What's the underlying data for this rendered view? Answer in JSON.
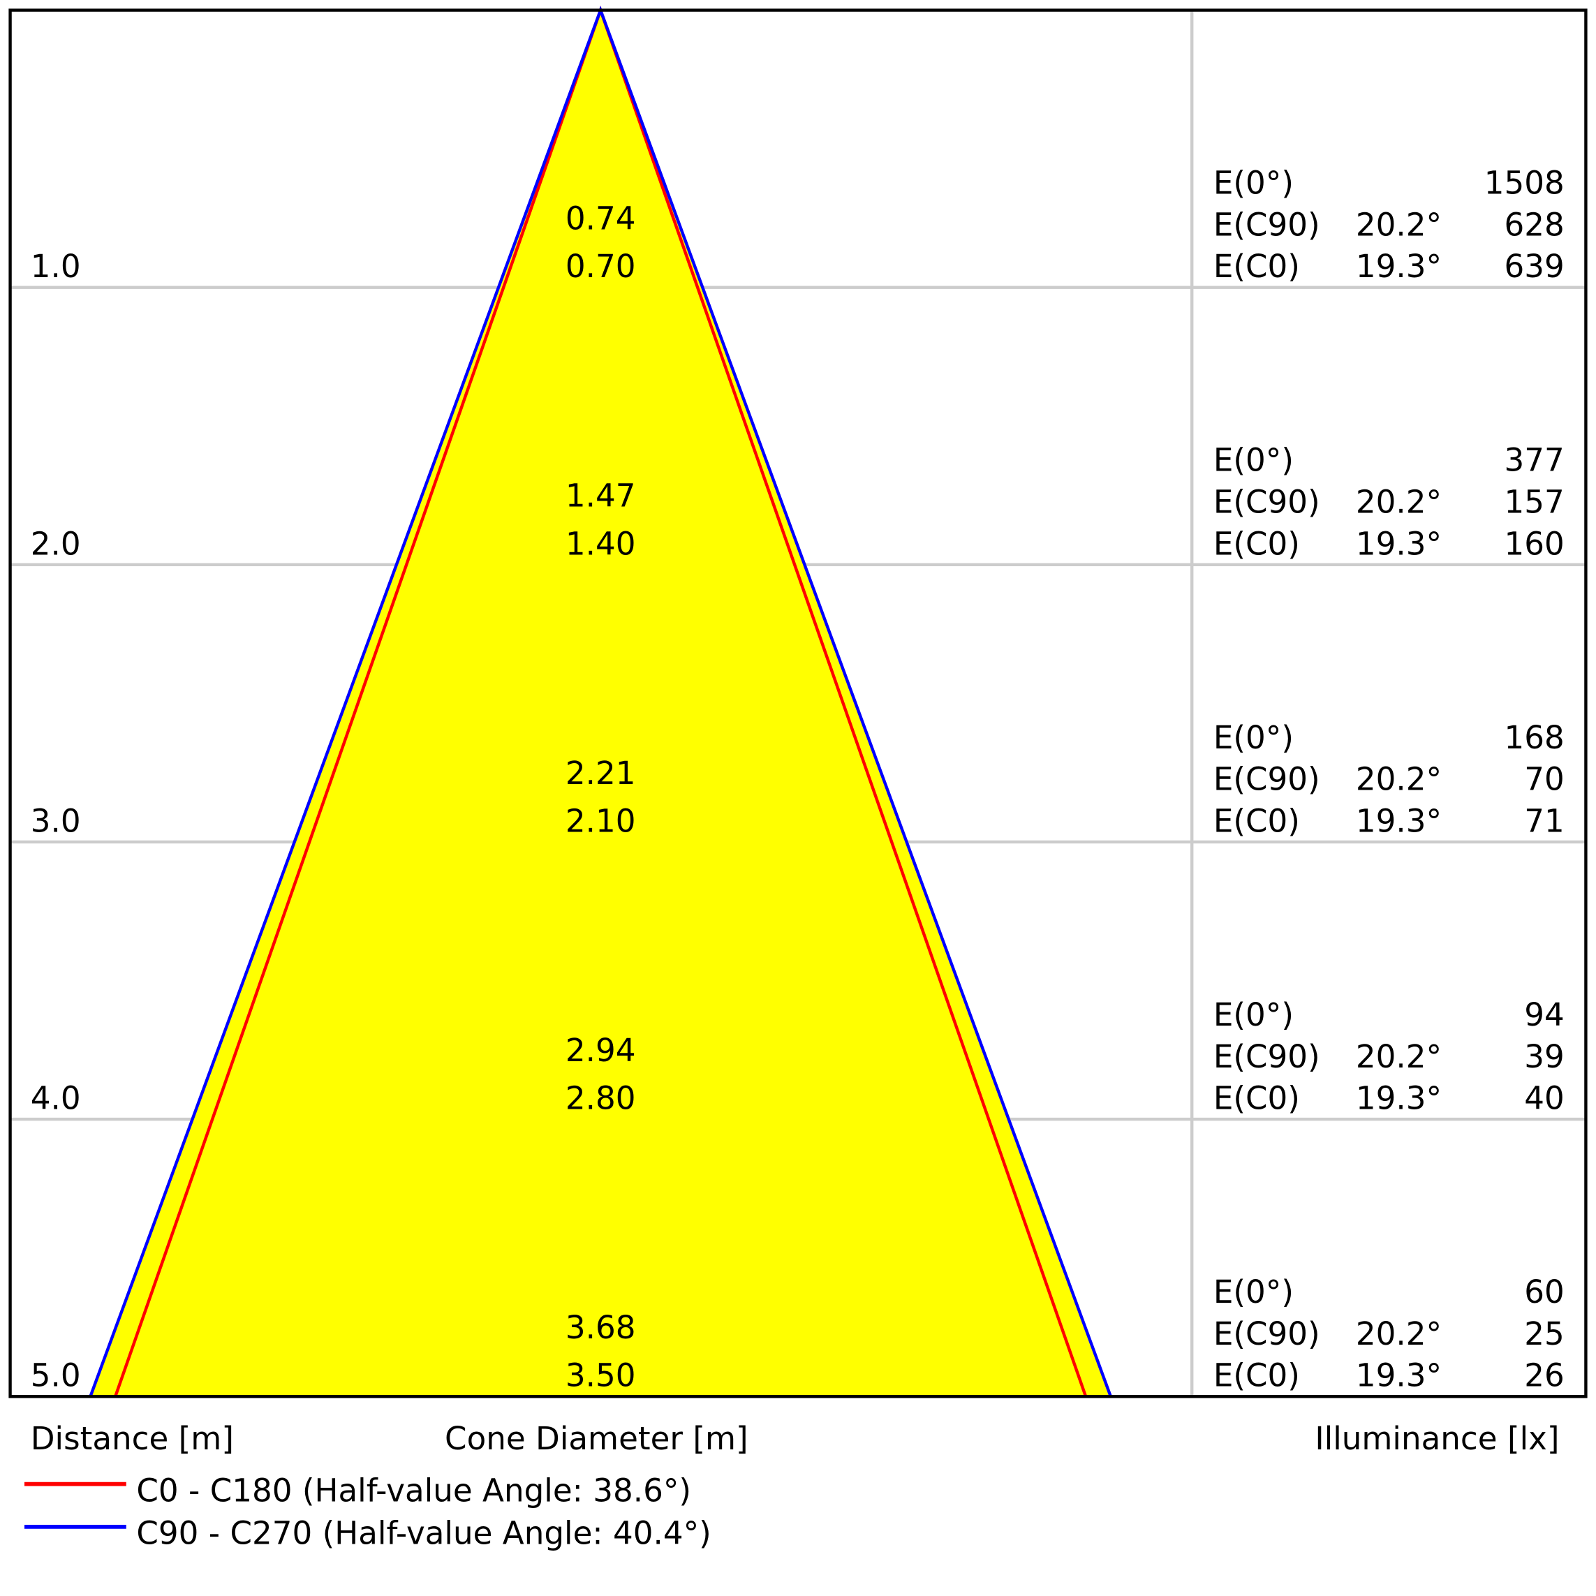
{
  "chart_data": {
    "type": "cone-diagram",
    "xlabel_distance": "Distance [m]",
    "xlabel_cone": "Cone Diameter [m]",
    "xlabel_illuminance": "Illuminance [lx]",
    "colors": {
      "fill": "#ffff00",
      "c0": "#ff0000",
      "c90": "#0000ff",
      "grid": "#cccccc",
      "frame": "#000000"
    },
    "legend": [
      {
        "label": "C0 - C180 (Half-value Angle: 38.6°)",
        "color": "#ff0000"
      },
      {
        "label": "C90 - C270 (Half-value Angle: 40.4°)",
        "color": "#0000ff"
      }
    ],
    "rows": [
      {
        "distance": "1.0",
        "d_c90": "0.74",
        "d_c0": "0.70",
        "e0_label": "E(0°)",
        "e0": "1508",
        "ec90_label": "E(C90)",
        "ec90_angle": "20.2°",
        "ec90": "628",
        "ec0_label": "E(C0)",
        "ec0_angle": "19.3°",
        "ec0": "639"
      },
      {
        "distance": "2.0",
        "d_c90": "1.47",
        "d_c0": "1.40",
        "e0_label": "E(0°)",
        "e0": "377",
        "ec90_label": "E(C90)",
        "ec90_angle": "20.2°",
        "ec90": "157",
        "ec0_label": "E(C0)",
        "ec0_angle": "19.3°",
        "ec0": "160"
      },
      {
        "distance": "3.0",
        "d_c90": "2.21",
        "d_c0": "2.10",
        "e0_label": "E(0°)",
        "e0": "168",
        "ec90_label": "E(C90)",
        "ec90_angle": "20.2°",
        "ec90": "70",
        "ec0_label": "E(C0)",
        "ec0_angle": "19.3°",
        "ec0": "71"
      },
      {
        "distance": "4.0",
        "d_c90": "2.94",
        "d_c0": "2.80",
        "e0_label": "E(0°)",
        "e0": "94",
        "ec90_label": "E(C90)",
        "ec90_angle": "20.2°",
        "ec90": "39",
        "ec0_label": "E(C0)",
        "ec0_angle": "19.3°",
        "ec0": "40"
      },
      {
        "distance": "5.0",
        "d_c90": "3.68",
        "d_c0": "3.50",
        "e0_label": "E(0°)",
        "e0": "60",
        "ec90_label": "E(C90)",
        "ec90_angle": "20.2°",
        "ec90": "25",
        "ec0_label": "E(C0)",
        "ec0_angle": "19.3°",
        "ec0": "26"
      }
    ]
  }
}
